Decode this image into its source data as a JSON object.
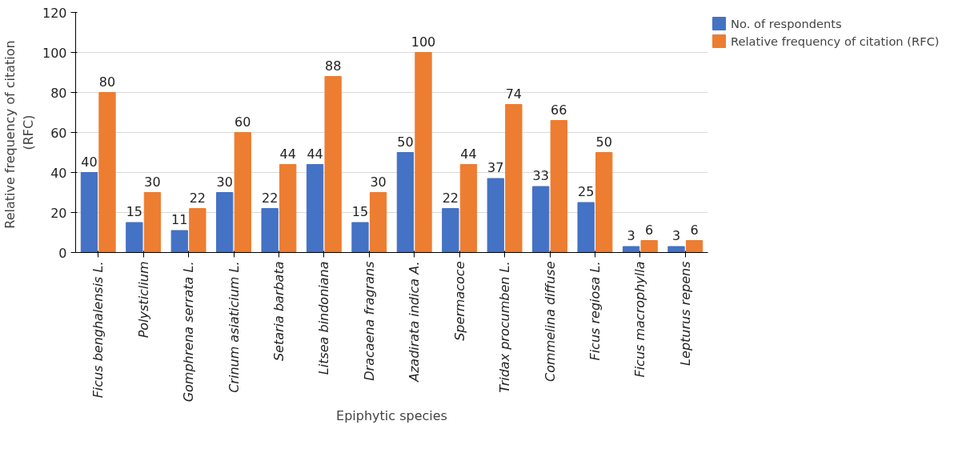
{
  "chart_data": {
    "type": "bar",
    "xlabel": "Epiphytic species",
    "ylabel": "Relative frequency of  citation\n(RFC)",
    "categories": [
      "Ficus benghalensis L.",
      "Polysticlium",
      "Gomphrena serrata L.",
      "Crinum asiaticium L.",
      "Setaria barbata",
      "Litsea bindoniana",
      "Dracaena fragrans",
      "Azadirata indica A.",
      "Spermacoce",
      "Tridax procumben L.",
      "Commelina diffuse",
      "Ficus regiosa L.",
      "Ficus macrophylla",
      "Lepturus repens"
    ],
    "series": [
      {
        "name": "No. of respondents",
        "color": "#4472c4",
        "values": [
          40,
          15,
          11,
          30,
          22,
          44,
          15,
          50,
          22,
          37,
          33,
          25,
          3,
          3
        ]
      },
      {
        "name": "Relative frequency of citation (RFC)",
        "color": "#ed7d31",
        "values": [
          80,
          30,
          22,
          60,
          44,
          88,
          30,
          100,
          44,
          74,
          66,
          50,
          6,
          6
        ]
      }
    ],
    "ylim": [
      0,
      120
    ],
    "yticks": [
      0,
      20,
      40,
      60,
      80,
      100,
      120
    ],
    "grid": "y",
    "legend": "top right",
    "data_labels": true
  }
}
